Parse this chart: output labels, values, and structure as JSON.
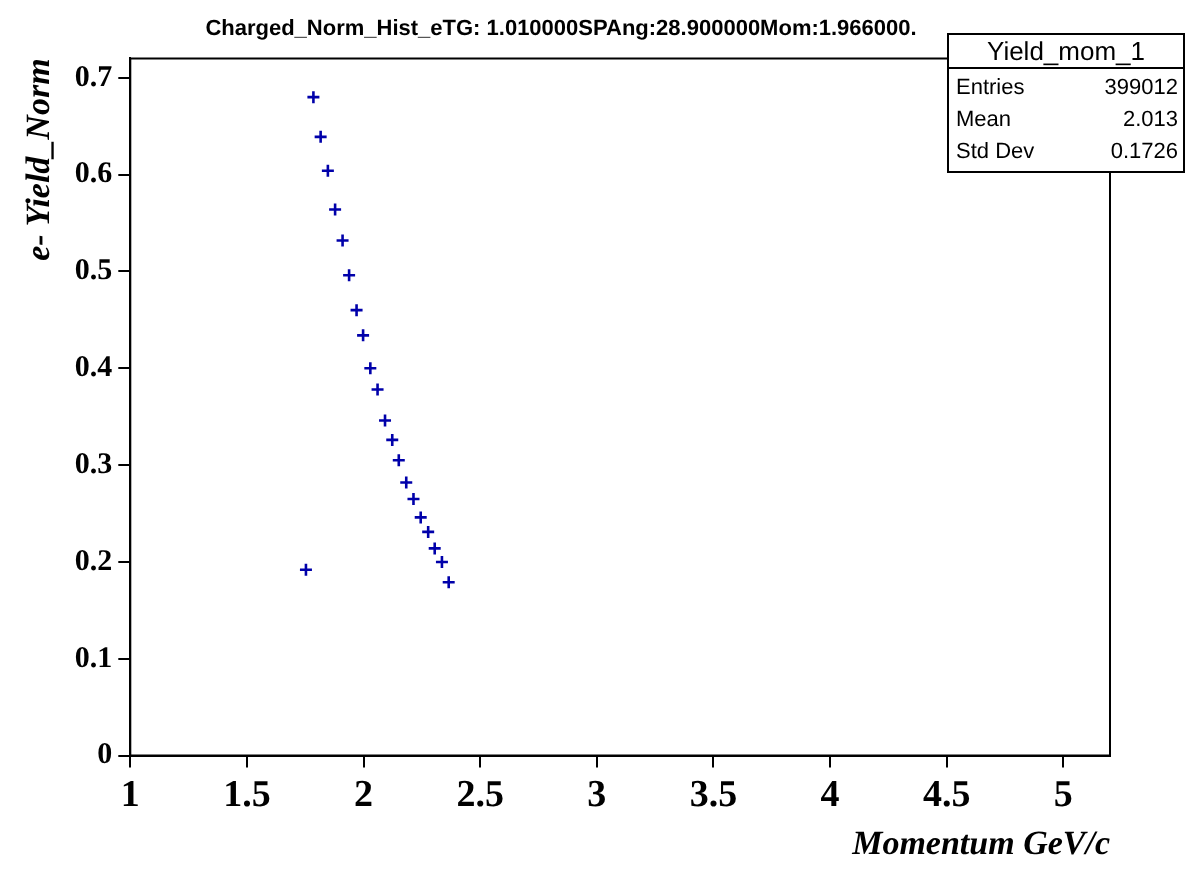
{
  "chart_data": {
    "type": "scatter",
    "title": "Charged_Norm_Hist_eTG: 1.010000SPAng:28.900000Mom:1.966000.",
    "xlabel": "Momentum GeV/c",
    "ylabel": "e- Yield_Norm",
    "x": [
      1.753,
      1.785,
      1.816,
      1.847,
      1.878,
      1.91,
      1.938,
      1.97,
      1.998,
      2.029,
      2.06,
      2.092,
      2.123,
      2.151,
      2.183,
      2.214,
      2.245,
      2.277,
      2.305,
      2.336,
      2.365
    ],
    "values": [
      0.192,
      0.68,
      0.639,
      0.604,
      0.564,
      0.532,
      0.496,
      0.46,
      0.434,
      0.4,
      0.378,
      0.346,
      0.326,
      0.305,
      0.282,
      0.265,
      0.246,
      0.231,
      0.214,
      0.2,
      0.179
    ],
    "color": "#0000aa",
    "marker": "cross",
    "grid": false,
    "legend": false,
    "xlim": [
      1,
      5.2
    ],
    "xticks": [
      1,
      1.5,
      2,
      2.5,
      3,
      3.5,
      4,
      4.5,
      5
    ],
    "ylim": [
      0,
      0.72
    ],
    "yticks": [
      0,
      0.1,
      0.2,
      0.3,
      0.4,
      0.5,
      0.6,
      0.7
    ],
    "annotations": [
      "Yield_mom_1",
      "Entries",
      "399012",
      "Mean",
      "2.013",
      "Std Dev",
      "0.1726"
    ]
  }
}
